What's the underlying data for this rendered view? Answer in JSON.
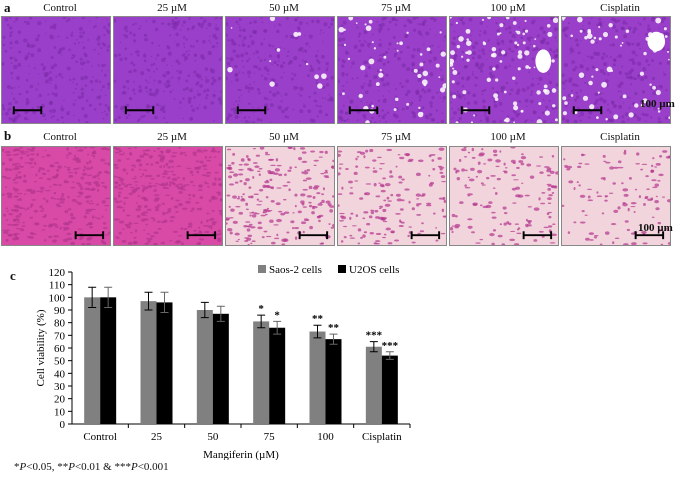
{
  "panel_a": {
    "letter": "a",
    "labels": [
      "Control",
      "25 µM",
      "50 µM",
      "75 µM",
      "100 µM",
      "Cisplatin"
    ],
    "scale_label": "100 µm",
    "colors": {
      "bg": "#9a3fc9",
      "cell": "#7a2aa8",
      "hole": "#ffffff"
    }
  },
  "panel_b": {
    "letter": "b",
    "labels": [
      "Control",
      "25 µM",
      "50 µM",
      "75 µM",
      "100 µM",
      "Cisplatin"
    ],
    "scale_label": "100 µm",
    "colors": {
      "bg": "#f2d4dc",
      "cell": "#b4348e",
      "dense": "#d84aa6"
    }
  },
  "panel_c": {
    "letter": "c"
  },
  "chart_data": {
    "type": "bar",
    "categories": [
      "Control",
      "25",
      "50",
      "75",
      "100",
      "Cisplatin"
    ],
    "series": [
      {
        "name": "Saos-2 cells",
        "values": [
          100,
          97,
          90,
          81,
          73,
          61
        ],
        "errors": [
          8,
          7,
          6,
          5,
          5,
          4
        ],
        "color": "#808080",
        "sig": [
          "",
          "",
          "",
          "*",
          "**",
          "***"
        ]
      },
      {
        "name": "U2OS cells",
        "values": [
          100,
          96,
          87,
          76,
          67,
          54
        ],
        "errors": [
          8,
          8,
          6,
          5,
          4,
          3
        ],
        "color": "#000000",
        "sig": [
          "",
          "",
          "",
          "*",
          "**",
          "***"
        ]
      }
    ],
    "xlabel": "Mangiferin (µM)",
    "ylabel": "Cell viability (%)",
    "ylim": [
      0,
      120
    ],
    "yticks": [
      0,
      10,
      20,
      30,
      40,
      50,
      60,
      70,
      80,
      90,
      100,
      110,
      120
    ],
    "legend": "top-right"
  },
  "footnote": {
    "p1_prefix": "*",
    "p1_sym": "P",
    "p1_text": "<0.05, **",
    "p2_sym": "P",
    "p2_text": "<0.01 & ***",
    "p3_sym": "P",
    "p3_text": "<0.001"
  }
}
